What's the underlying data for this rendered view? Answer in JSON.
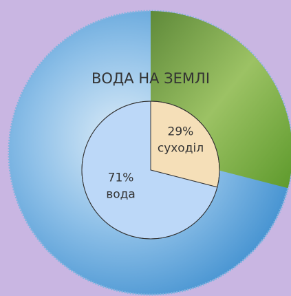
{
  "chart_data": {
    "type": "pie",
    "title": "ВОДА НА ЗЕМЛІ",
    "categories": [
      "суходіл",
      "вода"
    ],
    "values": [
      29,
      71
    ],
    "value_labels": [
      "29%",
      "71%"
    ],
    "colors": [
      "#f5dfb8",
      "#bcd8f8"
    ]
  }
}
